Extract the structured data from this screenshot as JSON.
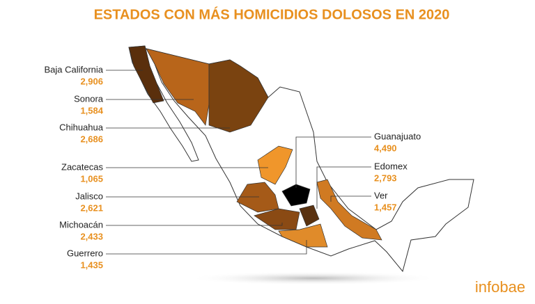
{
  "header": {
    "title": "ESTADOS CON MÁS HOMICIDIOS DOLOSOS EN 2020"
  },
  "states": [
    {
      "name": "Baja California",
      "value": "2,906",
      "color": "#5a2f0c"
    },
    {
      "name": "Sonora",
      "value": "1,584",
      "color": "#b8651a"
    },
    {
      "name": "Chihuahua",
      "value": "2,686",
      "color": "#7a4310"
    },
    {
      "name": "Zacatecas",
      "value": "1,065",
      "color": "#f0962b"
    },
    {
      "name": "Jalisco",
      "value": "2,621",
      "color": "#a55a18"
    },
    {
      "name": "Michoacán",
      "value": "2,433",
      "color": "#8a4a14"
    },
    {
      "name": "Guerrero",
      "value": "1,435",
      "color": "#e08b2a"
    },
    {
      "name": "Guanajuato",
      "value": "4,490",
      "color": "#000000"
    },
    {
      "name": "Edomex",
      "value": "2,793",
      "color": "#5a3210"
    },
    {
      "name": "Ver",
      "value": "1,457",
      "color": "#d07a22"
    }
  ],
  "footer": {
    "logo": "infobae"
  }
}
